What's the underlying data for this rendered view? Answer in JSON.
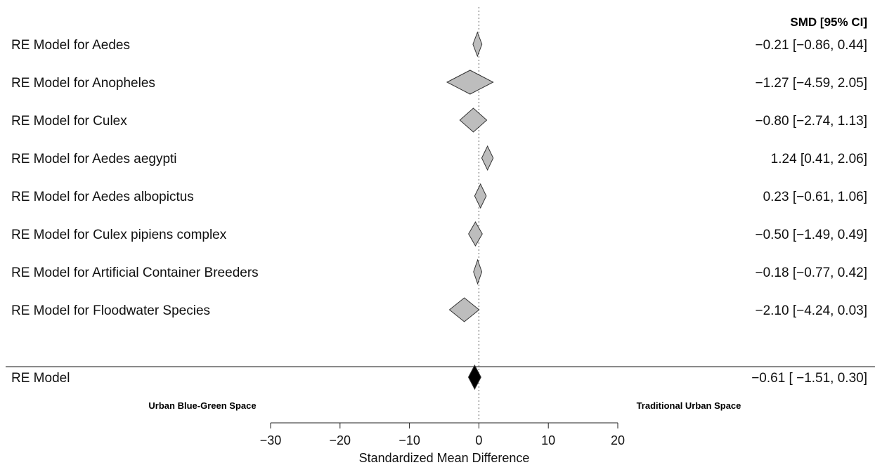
{
  "chart_data": {
    "type": "forest",
    "xlabel": "Standardized Mean Difference",
    "ci_header": "SMD [95% CI]",
    "xlim": [
      -30,
      20
    ],
    "xticks": [
      "−30",
      "−20",
      "−10",
      "0",
      "10",
      "20"
    ],
    "xtick_values": [
      -30,
      -20,
      -10,
      0,
      10,
      20
    ],
    "reference_line": 0,
    "direction_labels": {
      "left": "Urban Blue-Green Space",
      "right": "Traditional Urban Space"
    },
    "rows": [
      {
        "label": "RE Model for Aedes",
        "estimate": -0.21,
        "lower": -0.86,
        "upper": 0.44,
        "ci_text": "−0.21 [−0.86, 0.44]"
      },
      {
        "label": "RE Model for Anopheles",
        "estimate": -1.27,
        "lower": -4.59,
        "upper": 2.05,
        "ci_text": "−1.27 [−4.59, 2.05]"
      },
      {
        "label": "RE Model for Culex",
        "estimate": -0.8,
        "lower": -2.74,
        "upper": 1.13,
        "ci_text": "−0.80 [−2.74, 1.13]"
      },
      {
        "label": "RE Model for Aedes aegypti",
        "estimate": 1.24,
        "lower": 0.41,
        "upper": 2.06,
        "ci_text": "1.24 [0.41, 2.06]"
      },
      {
        "label": "RE Model for Aedes albopictus",
        "estimate": 0.23,
        "lower": -0.61,
        "upper": 1.06,
        "ci_text": "0.23 [−0.61, 1.06]"
      },
      {
        "label": "RE Model for Culex pipiens complex",
        "estimate": -0.5,
        "lower": -1.49,
        "upper": 0.49,
        "ci_text": "−0.50 [−1.49, 0.49]"
      },
      {
        "label": "RE Model for Artificial Container Breeders",
        "estimate": -0.18,
        "lower": -0.77,
        "upper": 0.42,
        "ci_text": "−0.18 [−0.77, 0.42]"
      },
      {
        "label": "RE Model for Floodwater Species",
        "estimate": -2.1,
        "lower": -4.24,
        "upper": 0.03,
        "ci_text": "−2.10 [−4.24, 0.03]"
      }
    ],
    "overall": {
      "label": "RE Model",
      "estimate": -0.61,
      "lower": -1.51,
      "upper": 0.3,
      "ci_text": "−0.61 [ −1.51,  0.30]"
    },
    "colors": {
      "subgroup_fill": "#bdbdbd",
      "overall_fill": "#000000",
      "outline": "#333333"
    }
  }
}
